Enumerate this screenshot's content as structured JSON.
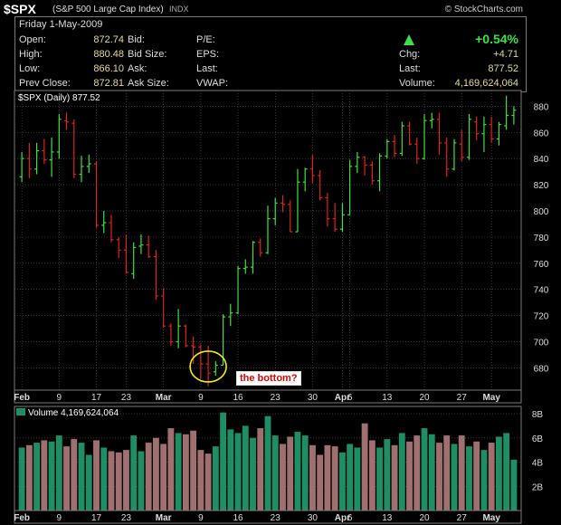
{
  "header": {
    "symbol": "$SPX",
    "name": "(S&P 500 Large Cap Index)",
    "exchange": "INDX",
    "source": "© StockCharts.com"
  },
  "info": {
    "date": "Friday  1-May-2009",
    "open_label": "Open:",
    "open": "872.74",
    "high_label": "High:",
    "high": "880.48",
    "low_label": "Low:",
    "low": "866.10",
    "prev_label": "Prev Close:",
    "prev": "872.81",
    "bid_label": "Bid:",
    "bidsize_label": "Bid Size:",
    "ask_label": "Ask:",
    "asksize_label": "Ask Size:",
    "pe_label": "P/E:",
    "eps_label": "EPS:",
    "last_label": "Last:",
    "vwap_label": "VWAP:",
    "pct": "+0.54%",
    "chg_label": "Chg:",
    "chg": "+4.71",
    "last2_label": "Last:",
    "last": "877.52",
    "volume_label": "Volume:",
    "volume": "4,169,624,064"
  },
  "chart_data": [
    {
      "type": "ohlc",
      "title": "$SPX (Daily) 877.52",
      "ylim": [
        663,
        892
      ],
      "y_ticks": [
        680,
        700,
        720,
        740,
        760,
        780,
        800,
        820,
        840,
        860,
        880
      ],
      "x_ticks": [
        "Feb",
        "9",
        "17",
        "23",
        "Mar",
        "9",
        "16",
        "23",
        "30",
        "Apr",
        "6",
        "13",
        "20",
        "27",
        "May"
      ],
      "x_tick_index": [
        0,
        5,
        10,
        14,
        19,
        24,
        29,
        34,
        39,
        43,
        44,
        49,
        54,
        59,
        63
      ],
      "colors": {
        "up": "#3ce040",
        "down": "#e02020",
        "grid": "#5a5a5a"
      },
      "annotation": "the bottom?",
      "bars": [
        {
          "o": 826,
          "h": 845,
          "l": 822,
          "c": 840
        },
        {
          "o": 840,
          "h": 852,
          "l": 825,
          "c": 832
        },
        {
          "o": 832,
          "h": 852,
          "l": 828,
          "c": 846
        },
        {
          "o": 846,
          "h": 855,
          "l": 836,
          "c": 839
        },
        {
          "o": 839,
          "h": 856,
          "l": 826,
          "c": 845
        },
        {
          "o": 845,
          "h": 874,
          "l": 840,
          "c": 870
        },
        {
          "o": 869,
          "h": 875,
          "l": 862,
          "c": 868
        },
        {
          "o": 867,
          "h": 870,
          "l": 825,
          "c": 828
        },
        {
          "o": 828,
          "h": 842,
          "l": 822,
          "c": 834
        },
        {
          "o": 834,
          "h": 843,
          "l": 829,
          "c": 836
        },
        {
          "o": 836,
          "h": 838,
          "l": 787,
          "c": 789
        },
        {
          "o": 789,
          "h": 800,
          "l": 783,
          "c": 791
        },
        {
          "o": 791,
          "h": 797,
          "l": 776,
          "c": 778
        },
        {
          "o": 778,
          "h": 780,
          "l": 764,
          "c": 770
        },
        {
          "o": 770,
          "h": 782,
          "l": 752,
          "c": 753
        },
        {
          "o": 752,
          "h": 776,
          "l": 748,
          "c": 772
        },
        {
          "o": 773,
          "h": 782,
          "l": 767,
          "c": 774
        },
        {
          "o": 774,
          "h": 781,
          "l": 764,
          "c": 765
        },
        {
          "o": 765,
          "h": 770,
          "l": 732,
          "c": 735
        },
        {
          "o": 735,
          "h": 741,
          "l": 711,
          "c": 712
        },
        {
          "o": 712,
          "h": 714,
          "l": 697,
          "c": 700
        },
        {
          "o": 700,
          "h": 725,
          "l": 695,
          "c": 712
        },
        {
          "o": 712,
          "h": 713,
          "l": 696,
          "c": 697
        },
        {
          "o": 697,
          "h": 704,
          "l": 683,
          "c": 696
        },
        {
          "o": 696,
          "h": 698,
          "l": 672,
          "c": 683
        },
        {
          "o": 683,
          "h": 697,
          "l": 666,
          "c": 676
        },
        {
          "o": 677,
          "h": 685,
          "l": 674,
          "c": 682
        },
        {
          "o": 682,
          "h": 721,
          "l": 682,
          "c": 719
        },
        {
          "o": 719,
          "h": 729,
          "l": 712,
          "c": 722
        },
        {
          "o": 722,
          "h": 758,
          "l": 721,
          "c": 756
        },
        {
          "o": 756,
          "h": 763,
          "l": 752,
          "c": 757
        },
        {
          "o": 757,
          "h": 777,
          "l": 752,
          "c": 776
        },
        {
          "o": 776,
          "h": 779,
          "l": 765,
          "c": 768
        },
        {
          "o": 768,
          "h": 804,
          "l": 767,
          "c": 794
        },
        {
          "o": 794,
          "h": 810,
          "l": 789,
          "c": 806
        },
        {
          "o": 806,
          "h": 812,
          "l": 799,
          "c": 805
        },
        {
          "o": 805,
          "h": 808,
          "l": 784,
          "c": 784
        },
        {
          "o": 784,
          "h": 832,
          "l": 784,
          "c": 822
        },
        {
          "o": 822,
          "h": 833,
          "l": 815,
          "c": 832
        },
        {
          "o": 832,
          "h": 843,
          "l": 821,
          "c": 827
        },
        {
          "o": 827,
          "h": 831,
          "l": 808,
          "c": 810
        },
        {
          "o": 810,
          "h": 814,
          "l": 788,
          "c": 794
        },
        {
          "o": 794,
          "h": 806,
          "l": 784,
          "c": 786
        },
        {
          "o": 786,
          "h": 806,
          "l": 784,
          "c": 797
        },
        {
          "o": 797,
          "h": 839,
          "l": 797,
          "c": 834
        },
        {
          "o": 834,
          "h": 845,
          "l": 829,
          "c": 841
        },
        {
          "o": 841,
          "h": 842,
          "l": 827,
          "c": 835
        },
        {
          "o": 835,
          "h": 838,
          "l": 820,
          "c": 823
        },
        {
          "o": 823,
          "h": 844,
          "l": 815,
          "c": 842
        },
        {
          "o": 842,
          "h": 855,
          "l": 840,
          "c": 853
        },
        {
          "o": 853,
          "h": 858,
          "l": 841,
          "c": 844
        },
        {
          "o": 844,
          "h": 868,
          "l": 842,
          "c": 865
        },
        {
          "o": 865,
          "h": 868,
          "l": 850,
          "c": 851
        },
        {
          "o": 851,
          "h": 856,
          "l": 836,
          "c": 840
        },
        {
          "o": 840,
          "h": 874,
          "l": 839,
          "c": 869
        },
        {
          "o": 869,
          "h": 875,
          "l": 863,
          "c": 870
        },
        {
          "o": 870,
          "h": 875,
          "l": 843,
          "c": 852
        },
        {
          "o": 852,
          "h": 856,
          "l": 826,
          "c": 832
        },
        {
          "o": 832,
          "h": 855,
          "l": 831,
          "c": 852
        },
        {
          "o": 851,
          "h": 862,
          "l": 838,
          "c": 841
        },
        {
          "o": 841,
          "h": 874,
          "l": 839,
          "c": 870
        },
        {
          "o": 868,
          "h": 872,
          "l": 854,
          "c": 859
        },
        {
          "o": 859,
          "h": 872,
          "l": 845,
          "c": 866
        },
        {
          "o": 866,
          "h": 872,
          "l": 852,
          "c": 855
        },
        {
          "o": 855,
          "h": 868,
          "l": 850,
          "c": 866
        },
        {
          "o": 865,
          "h": 888,
          "l": 862,
          "c": 873
        },
        {
          "o": 873,
          "h": 880,
          "l": 866,
          "c": 877
        }
      ]
    },
    {
      "type": "bar",
      "title": "Volume 4,169,624,064",
      "ylim": [
        0,
        8.6
      ],
      "y_ticks": [
        2,
        4,
        6,
        8
      ],
      "y_tick_labels": [
        "2B",
        "4B",
        "6B",
        "8B"
      ],
      "colors": {
        "up": "#1e8e64",
        "down": "#a07070"
      },
      "values": [
        5.2,
        5.4,
        5.6,
        5.8,
        5.7,
        6.2,
        5.3,
        5.9,
        5.6,
        4.6,
        5.8,
        5.2,
        4.9,
        4.8,
        5.0,
        6.2,
        4.9,
        5.6,
        6.0,
        5.5,
        6.8,
        6.4,
        6.3,
        6.6,
        5.0,
        4.7,
        5.3,
        8.1,
        6.7,
        6.4,
        7.0,
        6.0,
        6.8,
        7.8,
        6.2,
        5.5,
        6.1,
        6.5,
        6.2,
        5.4,
        4.6,
        5.4,
        5.3,
        4.8,
        5.5,
        5.2,
        7.2,
        5.8,
        5.2,
        5.9,
        5.4,
        6.4,
        5.7,
        6.2,
        6.8,
        6.3,
        5.6,
        6.2,
        5.5,
        6.2,
        5.3,
        5.7,
        5.0,
        5.6,
        6.1,
        6.4,
        4.2
      ],
      "up": [
        true,
        false,
        true,
        false,
        true,
        true,
        false,
        false,
        true,
        true,
        false,
        true,
        false,
        false,
        false,
        true,
        true,
        false,
        false,
        false,
        false,
        true,
        false,
        false,
        false,
        false,
        true,
        true,
        true,
        true,
        true,
        true,
        false,
        true,
        true,
        false,
        false,
        true,
        true,
        false,
        false,
        false,
        false,
        true,
        true,
        true,
        false,
        false,
        true,
        true,
        false,
        true,
        false,
        false,
        true,
        true,
        false,
        false,
        true,
        false,
        true,
        false,
        true,
        false,
        true,
        true,
        true
      ]
    }
  ]
}
